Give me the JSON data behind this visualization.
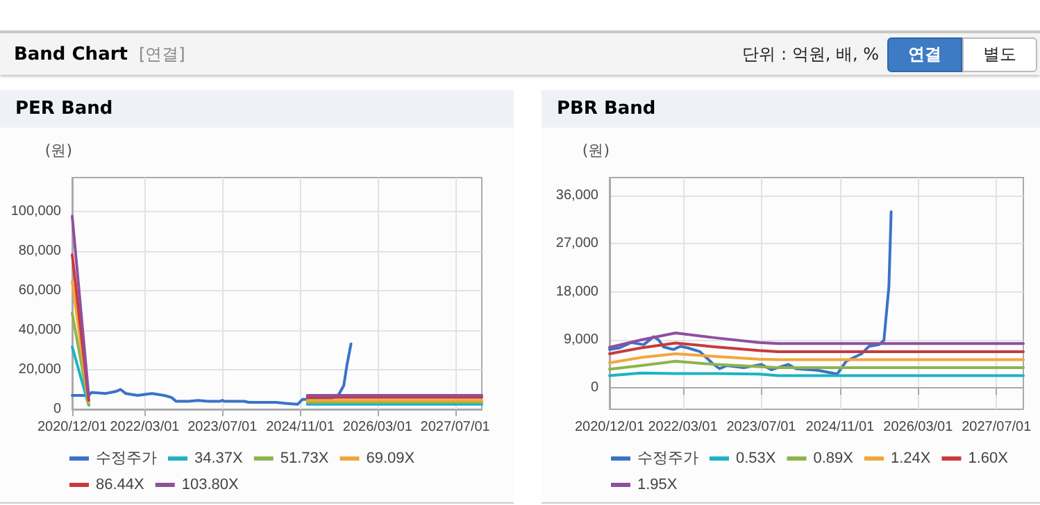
{
  "chart_data": [
    {
      "type": "other",
      "title": "Band Chart",
      "annotations": [
        "[연결]",
        "단위 : 억원, 배, %",
        "연결",
        "별도"
      ]
    },
    {
      "type": "line",
      "title": "PER Band",
      "ylabel": "(원)",
      "xlim": [
        "2020-12-01",
        "2027-12-15"
      ],
      "ylim": [
        0,
        117000
      ],
      "xticks": [
        {
          "value": "2020-12-01",
          "label": "2020/12/01"
        },
        {
          "value": "2022-03-01",
          "label": "2022/03/01"
        },
        {
          "value": "2023-07-01",
          "label": "2023/07/01"
        },
        {
          "value": "2024-11-01",
          "label": "2024/11/01"
        },
        {
          "value": "2026-03-01",
          "label": "2026/03/01"
        },
        {
          "value": "2027-07-01",
          "label": "2027/07/01"
        }
      ],
      "yticks": [
        0,
        {
          "value": 20000,
          "label": "20,000"
        },
        {
          "value": 40000,
          "label": "40,000"
        },
        {
          "value": 60000,
          "label": "60,000"
        },
        {
          "value": 80000,
          "label": "80,000"
        },
        {
          "value": 100000,
          "label": "100,000"
        }
      ],
      "grid": true,
      "legend": "bottom",
      "marker": "none",
      "line_style": "solid",
      "series": [
        {
          "name": "수정주가",
          "color": "#3a73c6",
          "x": [
            "2020-12-01",
            "2021-03-15",
            "2021-04-01",
            "2021-07-01",
            "2021-09-01",
            "2021-10-01",
            "2021-11-01",
            "2022-01-15",
            "2022-04-15",
            "2022-07-01",
            "2022-08-15",
            "2022-09-15",
            "2022-12-01",
            "2023-02-01",
            "2023-04-01",
            "2023-06-15",
            "2023-07-01",
            "2023-07-15",
            "2023-11-15",
            "2023-12-15",
            "2024-06-01",
            "2024-08-01",
            "2024-10-15",
            "2024-11-15",
            "2024-12-15",
            "2025-05-15",
            "2025-07-01",
            "2025-08-01",
            "2025-08-20",
            "2025-09-15"
          ],
          "values": [
            7000,
            7000,
            8500,
            8000,
            9000,
            10000,
            8000,
            7000,
            8000,
            7000,
            6000,
            4000,
            4000,
            4500,
            4000,
            4000,
            4500,
            4000,
            4000,
            3500,
            3500,
            3000,
            2500,
            5000,
            5000,
            5500,
            7500,
            12000,
            22000,
            33000
          ]
        },
        {
          "name": "34.37X",
          "color": "#1cb3c4",
          "x": [
            "2020-12-01",
            "2021-03-15",
            "2023-01-01",
            "2024-12-15",
            "2027-12-15"
          ],
          "values": [
            31500,
            2000,
            null,
            2500,
            2500
          ]
        },
        {
          "name": "51.73X",
          "color": "#8db44c",
          "x": [
            "2020-12-01",
            "2021-03-15",
            "2023-01-01",
            "2024-12-15",
            "2027-12-15"
          ],
          "values": [
            48500,
            2500,
            null,
            3500,
            3500
          ]
        },
        {
          "name": "69.09X",
          "color": "#f2a63b",
          "x": [
            "2020-12-01",
            "2021-03-15",
            "2023-01-01",
            "2024-12-15",
            "2027-12-15"
          ],
          "values": [
            64500,
            3500,
            null,
            4500,
            4500
          ]
        },
        {
          "name": "86.44X",
          "color": "#c83a3a",
          "x": [
            "2020-12-01",
            "2021-03-15",
            "2023-01-01",
            "2024-12-15",
            "2027-12-15"
          ],
          "values": [
            78000,
            4500,
            null,
            6000,
            6000
          ]
        },
        {
          "name": "103.80X",
          "color": "#8f4f9f",
          "x": [
            "2020-12-01",
            "2021-03-15",
            "2023-01-01",
            "2024-12-15",
            "2027-12-15"
          ],
          "values": [
            97500,
            6500,
            null,
            7000,
            7000
          ]
        }
      ]
    },
    {
      "type": "line",
      "title": "PBR Band",
      "ylabel": "(원)",
      "xlim": [
        "2020-12-01",
        "2027-12-15"
      ],
      "ylim": [
        -4000,
        39400
      ],
      "xticks": [
        {
          "value": "2020-12-01",
          "label": "2020/12/01"
        },
        {
          "value": "2022-03-01",
          "label": "2022/03/01"
        },
        {
          "value": "2023-07-01",
          "label": "2023/07/01"
        },
        {
          "value": "2024-11-01",
          "label": "2024/11/01"
        },
        {
          "value": "2026-03-01",
          "label": "2026/03/01"
        },
        {
          "value": "2027-07-01",
          "label": "2027/07/01"
        }
      ],
      "yticks": [
        0,
        {
          "value": 9000,
          "label": "9,000"
        },
        {
          "value": 18000,
          "label": "18,000"
        },
        {
          "value": 27000,
          "label": "27,000"
        },
        {
          "value": 36000,
          "label": "36,000"
        }
      ],
      "grid": true,
      "legend": "bottom",
      "marker": "none",
      "line_style": "solid",
      "series": [
        {
          "name": "수정주가",
          "color": "#3a73c6",
          "x": [
            "2020-12-01",
            "2021-02-01",
            "2021-04-15",
            "2021-07-01",
            "2021-09-01",
            "2021-10-01",
            "2021-11-01",
            "2022-01-01",
            "2022-02-15",
            "2022-04-01",
            "2022-06-15",
            "2022-09-01",
            "2022-10-15",
            "2022-12-01",
            "2023-03-15",
            "2023-07-01",
            "2023-09-01",
            "2023-12-15",
            "2024-02-01",
            "2024-06-15",
            "2024-10-15",
            "2024-12-10",
            "2025-03-15",
            "2025-05-01",
            "2025-07-01",
            "2025-08-01",
            "2025-09-01",
            "2025-09-15"
          ],
          "values": [
            7200,
            7500,
            8500,
            8100,
            9600,
            9000,
            7700,
            7200,
            7800,
            7500,
            6800,
            4600,
            3600,
            4200,
            3800,
            4400,
            3400,
            4400,
            3600,
            3300,
            2600,
            5000,
            6400,
            7800,
            8100,
            8900,
            19000,
            33000
          ]
        },
        {
          "name": "0.53X",
          "color": "#1cb3c4",
          "x": [
            "2020-12-01",
            "2021-06-15",
            "2022-01-15",
            "2022-09-15",
            "2023-06-15",
            "2023-10-15",
            "2027-12-15"
          ],
          "values": [
            2300,
            2800,
            2700,
            2700,
            2600,
            2300,
            2300
          ]
        },
        {
          "name": "0.89X",
          "color": "#8db44c",
          "x": [
            "2020-12-01",
            "2021-06-15",
            "2022-01-15",
            "2022-09-15",
            "2023-06-15",
            "2023-10-15",
            "2027-12-15"
          ],
          "values": [
            3500,
            4200,
            5000,
            4400,
            4000,
            3800,
            3800
          ]
        },
        {
          "name": "1.24X",
          "color": "#f2a63b",
          "x": [
            "2020-12-01",
            "2021-06-15",
            "2022-01-15",
            "2022-09-15",
            "2023-06-15",
            "2023-10-15",
            "2027-12-15"
          ],
          "values": [
            4700,
            5700,
            6400,
            5900,
            5400,
            5300,
            5300
          ]
        },
        {
          "name": "1.60X",
          "color": "#c83a3a",
          "x": [
            "2020-12-01",
            "2021-06-15",
            "2022-01-15",
            "2022-09-15",
            "2023-06-15",
            "2023-10-15",
            "2027-12-15"
          ],
          "values": [
            6400,
            7500,
            8400,
            7700,
            7000,
            6800,
            6800
          ]
        },
        {
          "name": "1.95X",
          "color": "#8f4f9f",
          "x": [
            "2020-12-01",
            "2021-06-15",
            "2022-01-15",
            "2022-09-15",
            "2023-06-15",
            "2023-10-15",
            "2027-12-15"
          ],
          "values": [
            7600,
            9000,
            10300,
            9400,
            8500,
            8300,
            8300
          ]
        }
      ]
    }
  ]
}
